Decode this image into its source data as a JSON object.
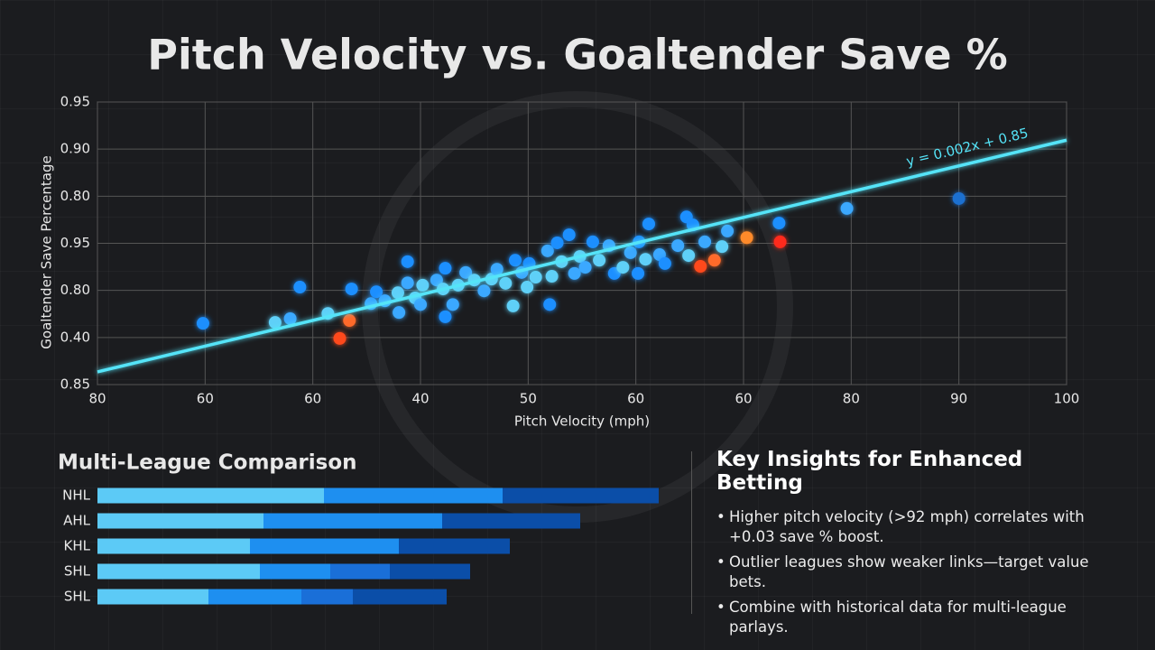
{
  "title": "Pitch Velocity vs. Goaltender Save %",
  "chart_data": [
    {
      "type": "scatter",
      "x_label": "Pitch Velocity (mph)",
      "y_label": "Goaltender Save Percentage",
      "xlim": [
        0,
        9
      ],
      "ylim": [
        0,
        6
      ],
      "xticks": [
        {
          "value": 0,
          "label": "80"
        },
        {
          "value": 1,
          "label": "60"
        },
        {
          "value": 2,
          "label": "60"
        },
        {
          "value": 3,
          "label": "40"
        },
        {
          "value": 4,
          "label": "50"
        },
        {
          "value": 5,
          "label": "60"
        },
        {
          "value": 6,
          "label": "60"
        },
        {
          "value": 7,
          "label": "80"
        },
        {
          "value": 8,
          "label": "90"
        },
        {
          "value": 9,
          "label": "100"
        }
      ],
      "yticks": [
        {
          "value": 0,
          "label": "0.85"
        },
        {
          "value": 1,
          "label": "0.40"
        },
        {
          "value": 2,
          "label": "0.80"
        },
        {
          "value": 3,
          "label": "0.95"
        },
        {
          "value": 4,
          "label": "0.80"
        },
        {
          "value": 5,
          "label": "0.90"
        },
        {
          "value": 6,
          "label": "0.95"
        }
      ],
      "grid": true,
      "x": [
        0.98,
        1.65,
        1.79,
        1.88,
        2.14,
        2.25,
        2.34,
        2.36,
        2.54,
        2.59,
        2.67,
        2.79,
        2.8,
        2.88,
        2.88,
        2.95,
        3.02,
        3.0,
        3.15,
        3.21,
        3.23,
        3.23,
        3.3,
        3.35,
        3.42,
        3.5,
        3.59,
        3.66,
        3.71,
        3.79,
        3.86,
        3.88,
        3.94,
        3.99,
        4.01,
        4.07,
        4.18,
        4.2,
        4.22,
        4.27,
        4.31,
        4.38,
        4.43,
        4.48,
        4.53,
        4.6,
        4.66,
        4.75,
        4.8,
        4.88,
        4.95,
        5.03,
        5.02,
        5.09,
        5.12,
        5.22,
        5.27,
        5.39,
        5.47,
        5.49,
        5.53,
        5.6,
        5.64,
        5.73,
        5.8,
        5.85,
        6.03,
        6.33,
        6.34,
        6.96,
        8.0
      ],
      "y": [
        1.3,
        1.32,
        1.4,
        2.07,
        1.51,
        0.98,
        1.36,
        2.03,
        1.72,
        1.97,
        1.78,
        1.95,
        1.53,
        2.61,
        2.16,
        1.84,
        2.11,
        1.7,
        2.22,
        2.03,
        2.47,
        1.44,
        1.7,
        2.11,
        2.38,
        2.22,
        1.99,
        2.24,
        2.45,
        2.15,
        1.67,
        2.64,
        2.38,
        2.07,
        2.57,
        2.28,
        2.84,
        1.7,
        2.3,
        3.01,
        2.61,
        3.18,
        2.36,
        2.72,
        2.49,
        3.03,
        2.64,
        2.95,
        2.36,
        2.49,
        2.8,
        3.03,
        2.36,
        2.66,
        3.41,
        2.76,
        2.57,
        2.95,
        3.56,
        2.74,
        3.39,
        2.51,
        3.03,
        2.64,
        2.93,
        3.26,
        3.12,
        3.43,
        3.03,
        3.74,
        3.95
      ],
      "colors": [
        "#1f8fff",
        "#5fd0f8",
        "#3aa8ff",
        "#1f8fff",
        "#5fd0f8",
        "#ff4a1c",
        "#ff6a2a",
        "#1f8fff",
        "#3aa8ff",
        "#1f8fff",
        "#3aa8ff",
        "#5fd0f8",
        "#3aa8ff",
        "#1f8fff",
        "#3aa8ff",
        "#5fd0f8",
        "#5fd0f8",
        "#3aa8ff",
        "#3aa8ff",
        "#5fd0f8",
        "#1f8fff",
        "#1f8fff",
        "#3aa8ff",
        "#5fd0f8",
        "#3aa8ff",
        "#5fd0f8",
        "#3aa8ff",
        "#5fd0f8",
        "#3aa8ff",
        "#5fd0f8",
        "#5fd0f8",
        "#1f8fff",
        "#3aa8ff",
        "#5fd0f8",
        "#1f8fff",
        "#5fd0f8",
        "#3aa8ff",
        "#1f8fff",
        "#5fd0f8",
        "#1f8fff",
        "#5fd0f8",
        "#1f8fff",
        "#3aa8ff",
        "#5fd0f8",
        "#3aa8ff",
        "#1f8fff",
        "#5fd0f8",
        "#3aa8ff",
        "#1f8fff",
        "#5fd0f8",
        "#3aa8ff",
        "#1f8fff",
        "#1f8fff",
        "#5fd0f8",
        "#1f8fff",
        "#3aa8ff",
        "#1f8fff",
        "#3aa8ff",
        "#1f8fff",
        "#5fd0f8",
        "#1f8fff",
        "#ff4a1c",
        "#3aa8ff",
        "#ff6a2a",
        "#5fd0f8",
        "#3aa8ff",
        "#ff8a2a",
        "#1f8fff",
        "#ff2a1c",
        "#3aa8ff",
        "#1e6fd0"
      ],
      "trendline": {
        "x": [
          0,
          9
        ],
        "y": [
          0.27,
          5.19
        ],
        "color": "#55e4f8",
        "label": "y = 0.002x + 0.85"
      }
    },
    {
      "type": "stacked-bar-horizontal",
      "title": "Multi-League Comparison",
      "categories": [
        "NHL",
        "AHL",
        "KHL",
        "SHL",
        "SHL"
      ],
      "series": [
        {
          "color": "#5ccaf6",
          "values": [
            251,
            184,
            169,
            180,
            123
          ]
        },
        {
          "color": "#1e8ff0",
          "values": [
            198,
            198,
            165,
            78,
            103
          ]
        },
        {
          "color": "#1a6fd8",
          "values": [
            null,
            null,
            null,
            66,
            57
          ]
        },
        {
          "color": "#0b4ea8",
          "values": [
            173,
            153,
            123,
            89,
            104
          ]
        }
      ]
    }
  ],
  "insights": {
    "title": "Key Insights for Enhanced Betting",
    "items": [
      "Higher pitch velocity (>92 mph) correlates with +0.03 save % boost.",
      "Outlier leagues show weaker links—target value bets.",
      "Combine with historical data for multi-league parlays."
    ]
  }
}
